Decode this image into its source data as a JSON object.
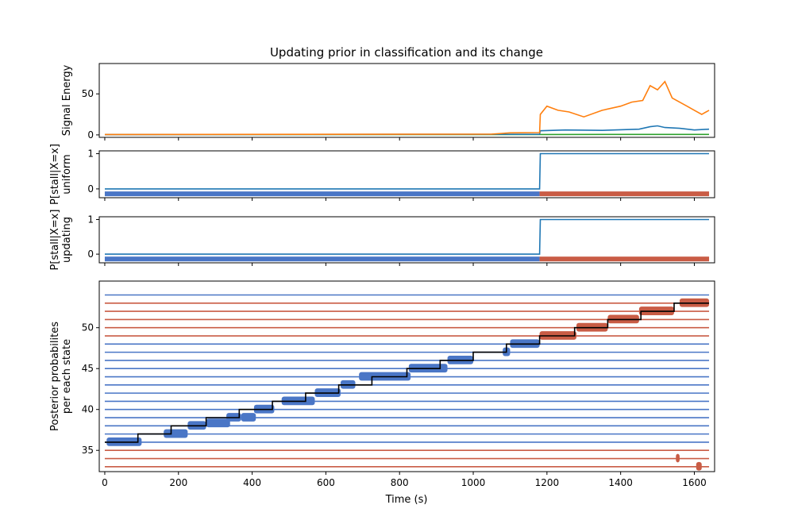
{
  "title": "Updating prior in classification and its change",
  "xlabel": "Time (s)",
  "colors": {
    "blue": "#1f77b4",
    "orange": "#ff7f0e",
    "green": "#2ca02c",
    "state_blue": "#4a76c6",
    "state_red": "#c95c45",
    "black": "#000000"
  },
  "chart_data": [
    {
      "type": "line",
      "panel": "signal",
      "ylabel": [
        "Signal Energy"
      ],
      "xlim": [
        -15,
        1655
      ],
      "ylim": [
        -3,
        87
      ],
      "yticks": [
        0,
        50
      ],
      "series": [
        {
          "color": "green",
          "x": [
            0,
            1180,
            1640
          ],
          "y": [
            0.4,
            0.5,
            0.6
          ]
        },
        {
          "color": "blue",
          "x": [
            0,
            500,
            1180,
            1182,
            1250,
            1350,
            1450,
            1480,
            1500,
            1520,
            1560,
            1600,
            1640
          ],
          "y": [
            0.3,
            0.6,
            0.8,
            5,
            6,
            5.5,
            7,
            10,
            11,
            9,
            8,
            6,
            7
          ]
        },
        {
          "color": "orange",
          "x": [
            0,
            1050,
            1100,
            1180,
            1182,
            1200,
            1230,
            1260,
            1300,
            1350,
            1400,
            1430,
            1460,
            1480,
            1500,
            1520,
            1540,
            1560,
            1580,
            1600,
            1620,
            1640
          ],
          "y": [
            0.5,
            1,
            2.5,
            2.8,
            25,
            35,
            30,
            28,
            22,
            30,
            35,
            40,
            42,
            60,
            55,
            65,
            45,
            40,
            35,
            30,
            25,
            30
          ]
        }
      ]
    },
    {
      "type": "line",
      "panel": "uniform",
      "ylabel": [
        "P[stall|X=x]",
        "uniform"
      ],
      "xlim": [
        -15,
        1655
      ],
      "ylim": [
        -0.25,
        1.08
      ],
      "yticks": [
        0,
        1
      ],
      "series": [
        {
          "color": "blue",
          "x": [
            0,
            1180,
            1182,
            1640
          ],
          "y": [
            0,
            0,
            1,
            1
          ]
        }
      ],
      "state_bar": {
        "y": -0.14,
        "segments": [
          {
            "x0": 0,
            "x1": 1180,
            "color": "state_blue"
          },
          {
            "x0": 1180,
            "x1": 1640,
            "color": "state_red"
          }
        ]
      }
    },
    {
      "type": "line",
      "panel": "updating",
      "ylabel": [
        "P[stall|X=x]",
        "updating"
      ],
      "xlim": [
        -15,
        1655
      ],
      "ylim": [
        -0.25,
        1.08
      ],
      "yticks": [
        0,
        1
      ],
      "series": [
        {
          "color": "blue",
          "x": [
            0,
            1180,
            1182,
            1640
          ],
          "y": [
            0,
            0,
            1,
            1
          ]
        }
      ],
      "state_bar": {
        "y": -0.14,
        "segments": [
          {
            "x0": 0,
            "x1": 1180,
            "color": "state_blue"
          },
          {
            "x0": 1180,
            "x1": 1640,
            "color": "state_red"
          }
        ]
      }
    },
    {
      "type": "line",
      "panel": "posterior",
      "ylabel": [
        "Posterior probabilites",
        "per each state"
      ],
      "xlim": [
        -15,
        1655
      ],
      "xticks": [
        0,
        200,
        400,
        600,
        800,
        1000,
        1200,
        1400,
        1600
      ],
      "ylim": [
        32.4,
        55.7
      ],
      "yticks": [
        35,
        40,
        45,
        50
      ],
      "state_lines": {
        "x0": 0,
        "x1": 1640,
        "blue": [
          36,
          37,
          38,
          39,
          40,
          41,
          42,
          43,
          44,
          45,
          46,
          47,
          48,
          54
        ],
        "red": [
          33,
          34,
          35,
          49,
          50,
          51,
          52,
          53
        ]
      },
      "blobs_blue": [
        {
          "x0": 5,
          "x1": 100,
          "y": 36
        },
        {
          "x0": 160,
          "x1": 225,
          "y": 37
        },
        {
          "x0": 225,
          "x1": 275,
          "y": 38
        },
        {
          "x0": 275,
          "x1": 340,
          "y": 38.3
        },
        {
          "x0": 330,
          "x1": 370,
          "y": 39
        },
        {
          "x0": 370,
          "x1": 410,
          "y": 39
        },
        {
          "x0": 405,
          "x1": 460,
          "y": 40
        },
        {
          "x0": 480,
          "x1": 570,
          "y": 41
        },
        {
          "x0": 570,
          "x1": 640,
          "y": 42
        },
        {
          "x0": 640,
          "x1": 680,
          "y": 43
        },
        {
          "x0": 690,
          "x1": 830,
          "y": 44
        },
        {
          "x0": 825,
          "x1": 930,
          "y": 45
        },
        {
          "x0": 930,
          "x1": 1000,
          "y": 46
        },
        {
          "x0": 1080,
          "x1": 1100,
          "y": 47
        },
        {
          "x0": 1100,
          "x1": 1180,
          "y": 48
        }
      ],
      "blobs_red": [
        {
          "x0": 1180,
          "x1": 1280,
          "y": 49
        },
        {
          "x0": 1280,
          "x1": 1365,
          "y": 50
        },
        {
          "x0": 1365,
          "x1": 1450,
          "y": 51
        },
        {
          "x0": 1450,
          "x1": 1545,
          "y": 52
        },
        {
          "x0": 1560,
          "x1": 1640,
          "y": 53
        },
        {
          "x0": 1550,
          "x1": 1560,
          "y": 34
        },
        {
          "x0": 1605,
          "x1": 1620,
          "y": 33
        }
      ],
      "black_step": {
        "x": [
          0,
          90,
          90,
          180,
          180,
          275,
          275,
          365,
          365,
          455,
          455,
          545,
          545,
          635,
          635,
          725,
          725,
          820,
          820,
          910,
          910,
          1000,
          1000,
          1090,
          1090,
          1180,
          1180,
          1275,
          1275,
          1365,
          1365,
          1455,
          1455,
          1545,
          1545,
          1640
        ],
        "y": [
          36,
          36,
          37,
          37,
          38,
          38,
          39,
          39,
          40,
          40,
          41,
          41,
          42,
          42,
          43,
          43,
          44,
          44,
          45,
          45,
          46,
          46,
          47,
          47,
          48,
          48,
          49,
          49,
          50,
          50,
          51,
          51,
          52,
          52,
          53,
          53
        ]
      }
    }
  ]
}
